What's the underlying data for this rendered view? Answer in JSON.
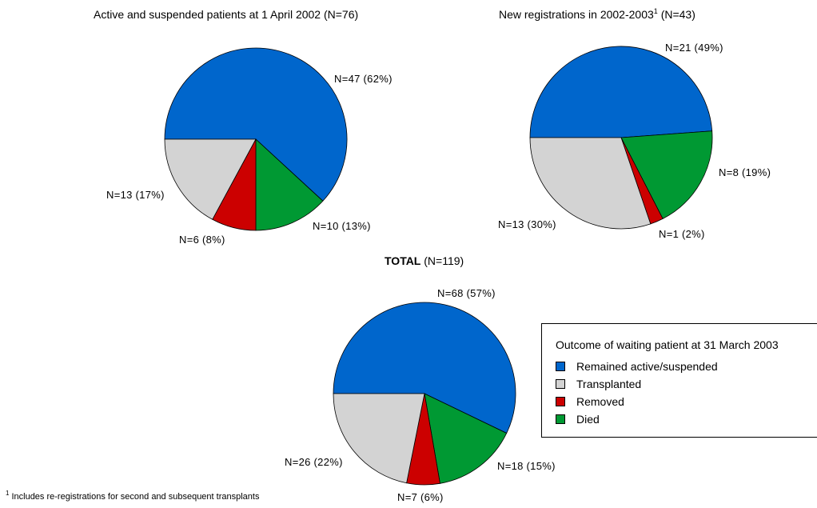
{
  "colors": {
    "remained": "#0066cc",
    "transplanted": "#d3d3d3",
    "removed": "#cc0000",
    "died": "#009933"
  },
  "chart_data": [
    {
      "type": "pie",
      "title_main": "Active and suspended patients at 1 April 2002",
      "title_n": "(N=76)",
      "slices": [
        {
          "label": "Remained active/suspended",
          "value": 47,
          "text": "N=47 (62%)"
        },
        {
          "label": "Died",
          "value": 10,
          "text": "N=10 (13%)"
        },
        {
          "label": "Removed",
          "value": 6,
          "text": "N=6 (8%)"
        },
        {
          "label": "Transplanted",
          "value": 13,
          "text": "N=13 (17%)"
        }
      ]
    },
    {
      "type": "pie",
      "title_main": "New registrations in 2002-2003",
      "title_sup": "1",
      "title_n": "(N=43)",
      "slices": [
        {
          "label": "Remained active/suspended",
          "value": 21,
          "text": "N=21 (49%)"
        },
        {
          "label": "Died",
          "value": 8,
          "text": "N=8 (19%)"
        },
        {
          "label": "Removed",
          "value": 1,
          "text": "N=1 (2%)"
        },
        {
          "label": "Transplanted",
          "value": 13,
          "text": "N=13 (30%)"
        }
      ]
    },
    {
      "type": "pie",
      "title_main": "TOTAL",
      "title_n": "(N=119)",
      "slices": [
        {
          "label": "Remained active/suspended",
          "value": 68,
          "text": "N=68 (57%)"
        },
        {
          "label": "Died",
          "value": 18,
          "text": "N=18 (15%)"
        },
        {
          "label": "Removed",
          "value": 7,
          "text": "N=7 (6%)"
        },
        {
          "label": "Transplanted",
          "value": 26,
          "text": "N=26 (22%)"
        }
      ]
    }
  ],
  "legend": {
    "title": "Outcome of waiting patient at 31 March 2003",
    "items": [
      {
        "label": "Remained active/suspended",
        "color": "#0066cc"
      },
      {
        "label": "Transplanted",
        "color": "#d3d3d3"
      },
      {
        "label": "Removed",
        "color": "#cc0000"
      },
      {
        "label": "Died",
        "color": "#009933"
      }
    ]
  },
  "footnote": {
    "marker": "1",
    "text": "Includes re-registrations for second and subsequent transplants"
  }
}
